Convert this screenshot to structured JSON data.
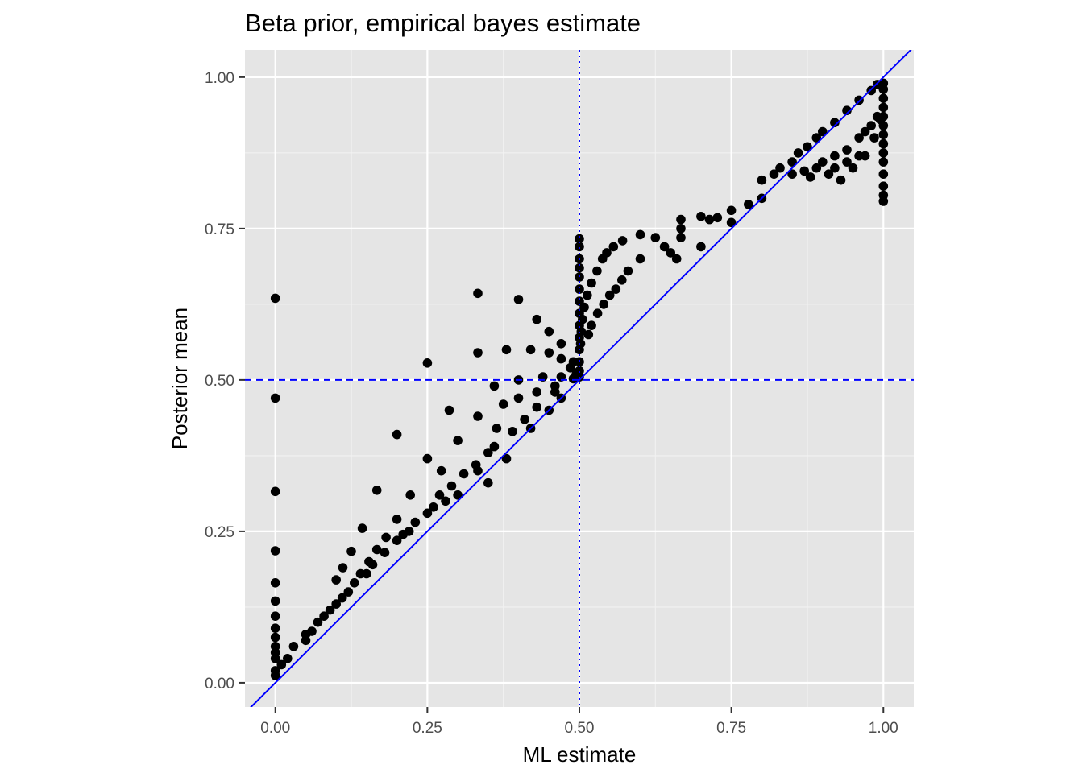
{
  "chart_data": {
    "type": "scatter",
    "title": "Beta prior, empirical bayes estimate",
    "xlabel": "ML estimate",
    "ylabel": "Posterior mean",
    "xlim": [
      -0.05,
      1.05
    ],
    "ylim": [
      -0.04,
      1.045
    ],
    "x_ticks": [
      0,
      0.25,
      0.5,
      0.75,
      1
    ],
    "y_ticks": [
      0,
      0.25,
      0.5,
      0.75,
      1
    ],
    "x_tick_labels": [
      "0.00",
      "0.25",
      "0.50",
      "0.75",
      "1.00"
    ],
    "y_tick_labels": [
      "0.00",
      "0.25",
      "0.50",
      "0.75",
      "1.00"
    ],
    "grid": true,
    "reference_lines": [
      {
        "kind": "abline",
        "slope": 1,
        "intercept": 0,
        "style": "solid",
        "color": "#0000ff"
      },
      {
        "kind": "hline",
        "y": 0.5,
        "style": "dashed",
        "color": "#0000ff"
      },
      {
        "kind": "vline",
        "x": 0.5,
        "style": "dotted",
        "color": "#0000ff"
      }
    ],
    "point_color": "#000000",
    "panel_background": "#e5e5e5",
    "points": [
      [
        0,
        0.635
      ],
      [
        0,
        0.47
      ],
      [
        0,
        0.316
      ],
      [
        0,
        0.218
      ],
      [
        0,
        0.165
      ],
      [
        0,
        0.135
      ],
      [
        0,
        0.11
      ],
      [
        0,
        0.09
      ],
      [
        0,
        0.075
      ],
      [
        0,
        0.06
      ],
      [
        0,
        0.05
      ],
      [
        0,
        0.04
      ],
      [
        0,
        0.02
      ],
      [
        0,
        0.012
      ],
      [
        0.333,
        0.643
      ],
      [
        0.333,
        0.545
      ],
      [
        0.4,
        0.633
      ],
      [
        0.25,
        0.528
      ],
      [
        0.25,
        0.37
      ],
      [
        0.2,
        0.41
      ],
      [
        0.167,
        0.318
      ],
      [
        0.143,
        0.255
      ],
      [
        0.125,
        0.217
      ],
      [
        0.111,
        0.19
      ],
      [
        0.1,
        0.17
      ],
      [
        0.286,
        0.45
      ],
      [
        0.3,
        0.4
      ],
      [
        0.273,
        0.35
      ],
      [
        0.222,
        0.31
      ],
      [
        0.2,
        0.27
      ],
      [
        0.182,
        0.24
      ],
      [
        0.167,
        0.22
      ],
      [
        0.154,
        0.2
      ],
      [
        0.333,
        0.44
      ],
      [
        0.375,
        0.46
      ],
      [
        0.364,
        0.42
      ],
      [
        0.35,
        0.38
      ],
      [
        0.333,
        0.35
      ],
      [
        0.38,
        0.55
      ],
      [
        0.42,
        0.55
      ],
      [
        0.45,
        0.545
      ],
      [
        0.47,
        0.535
      ],
      [
        0.485,
        0.52
      ],
      [
        0.43,
        0.6
      ],
      [
        0.45,
        0.58
      ],
      [
        0.47,
        0.56
      ],
      [
        0.49,
        0.53
      ],
      [
        0.495,
        0.51
      ],
      [
        0.36,
        0.49
      ],
      [
        0.4,
        0.5
      ],
      [
        0.44,
        0.505
      ],
      [
        0.47,
        0.505
      ],
      [
        0.49,
        0.502
      ],
      [
        0.4,
        0.47
      ],
      [
        0.43,
        0.48
      ],
      [
        0.46,
        0.49
      ],
      [
        0.5,
        0.733
      ],
      [
        0.5,
        0.72
      ],
      [
        0.5,
        0.7
      ],
      [
        0.5,
        0.685
      ],
      [
        0.5,
        0.67
      ],
      [
        0.5,
        0.65
      ],
      [
        0.5,
        0.63
      ],
      [
        0.5,
        0.61
      ],
      [
        0.5,
        0.59
      ],
      [
        0.5,
        0.57
      ],
      [
        0.5,
        0.55
      ],
      [
        0.5,
        0.53
      ],
      [
        0.5,
        0.515
      ],
      [
        0.5,
        0.505
      ],
      [
        0.6,
        0.74
      ],
      [
        0.571,
        0.73
      ],
      [
        0.556,
        0.72
      ],
      [
        0.545,
        0.71
      ],
      [
        0.538,
        0.7
      ],
      [
        0.529,
        0.68
      ],
      [
        0.52,
        0.66
      ],
      [
        0.513,
        0.64
      ],
      [
        0.508,
        0.62
      ],
      [
        0.505,
        0.6
      ],
      [
        0.503,
        0.58
      ],
      [
        0.502,
        0.56
      ],
      [
        0.625,
        0.735
      ],
      [
        0.64,
        0.72
      ],
      [
        0.65,
        0.71
      ],
      [
        0.66,
        0.7
      ],
      [
        0.6,
        0.7
      ],
      [
        0.58,
        0.68
      ],
      [
        0.57,
        0.665
      ],
      [
        0.56,
        0.65
      ],
      [
        0.55,
        0.64
      ],
      [
        0.54,
        0.625
      ],
      [
        0.53,
        0.61
      ],
      [
        0.52,
        0.59
      ],
      [
        0.515,
        0.575
      ],
      [
        0.667,
        0.765
      ],
      [
        0.667,
        0.75
      ],
      [
        0.667,
        0.735
      ],
      [
        0.7,
        0.77
      ],
      [
        0.714,
        0.765
      ],
      [
        0.727,
        0.768
      ],
      [
        0.75,
        0.78
      ],
      [
        0.778,
        0.79
      ],
      [
        0.8,
        0.8
      ],
      [
        0.75,
        0.76
      ],
      [
        0.7,
        0.72
      ],
      [
        0.8,
        0.83
      ],
      [
        0.82,
        0.84
      ],
      [
        0.83,
        0.85
      ],
      [
        0.85,
        0.86
      ],
      [
        0.86,
        0.875
      ],
      [
        0.875,
        0.885
      ],
      [
        0.89,
        0.9
      ],
      [
        0.9,
        0.91
      ],
      [
        0.92,
        0.925
      ],
      [
        0.94,
        0.945
      ],
      [
        0.96,
        0.962
      ],
      [
        0.98,
        0.978
      ],
      [
        0.99,
        0.988
      ],
      [
        0.85,
        0.84
      ],
      [
        0.87,
        0.845
      ],
      [
        0.89,
        0.85
      ],
      [
        0.9,
        0.86
      ],
      [
        0.92,
        0.87
      ],
      [
        0.94,
        0.88
      ],
      [
        0.96,
        0.9
      ],
      [
        0.97,
        0.91
      ],
      [
        0.98,
        0.92
      ],
      [
        0.99,
        0.935
      ],
      [
        0.93,
        0.83
      ],
      [
        0.91,
        0.84
      ],
      [
        0.88,
        0.835
      ],
      [
        0.95,
        0.85
      ],
      [
        0.97,
        0.87
      ],
      [
        0.985,
        0.9
      ],
      [
        0.995,
        0.93
      ],
      [
        0.96,
        0.87
      ],
      [
        0.94,
        0.86
      ],
      [
        0.92,
        0.85
      ],
      [
        1,
        0.795
      ],
      [
        1,
        0.805
      ],
      [
        1,
        0.82
      ],
      [
        1,
        0.84
      ],
      [
        1,
        0.86
      ],
      [
        1,
        0.875
      ],
      [
        1,
        0.89
      ],
      [
        1,
        0.905
      ],
      [
        1,
        0.92
      ],
      [
        1,
        0.935
      ],
      [
        1,
        0.95
      ],
      [
        1,
        0.965
      ],
      [
        1,
        0.98
      ],
      [
        1,
        0.99
      ],
      [
        0.35,
        0.33
      ],
      [
        0.38,
        0.37
      ],
      [
        0.42,
        0.42
      ],
      [
        0.45,
        0.45
      ],
      [
        0.47,
        0.47
      ],
      [
        0.3,
        0.31
      ],
      [
        0.28,
        0.3
      ],
      [
        0.26,
        0.29
      ],
      [
        0.22,
        0.25
      ],
      [
        0.15,
        0.18
      ],
      [
        0.12,
        0.15
      ],
      [
        0.09,
        0.12
      ],
      [
        0.07,
        0.1
      ],
      [
        0.05,
        0.08
      ],
      [
        0.03,
        0.06
      ],
      [
        0.02,
        0.04
      ],
      [
        0.01,
        0.03
      ],
      [
        0.05,
        0.07
      ],
      [
        0.06,
        0.085
      ],
      [
        0.08,
        0.11
      ],
      [
        0.1,
        0.13
      ],
      [
        0.11,
        0.14
      ],
      [
        0.13,
        0.165
      ],
      [
        0.14,
        0.18
      ],
      [
        0.16,
        0.195
      ],
      [
        0.18,
        0.215
      ],
      [
        0.2,
        0.235
      ],
      [
        0.21,
        0.245
      ],
      [
        0.23,
        0.265
      ],
      [
        0.25,
        0.28
      ],
      [
        0.27,
        0.31
      ],
      [
        0.29,
        0.325
      ],
      [
        0.31,
        0.345
      ],
      [
        0.33,
        0.36
      ],
      [
        0.36,
        0.39
      ],
      [
        0.39,
        0.415
      ],
      [
        0.41,
        0.435
      ],
      [
        0.43,
        0.455
      ],
      [
        0.46,
        0.48
      ]
    ]
  }
}
